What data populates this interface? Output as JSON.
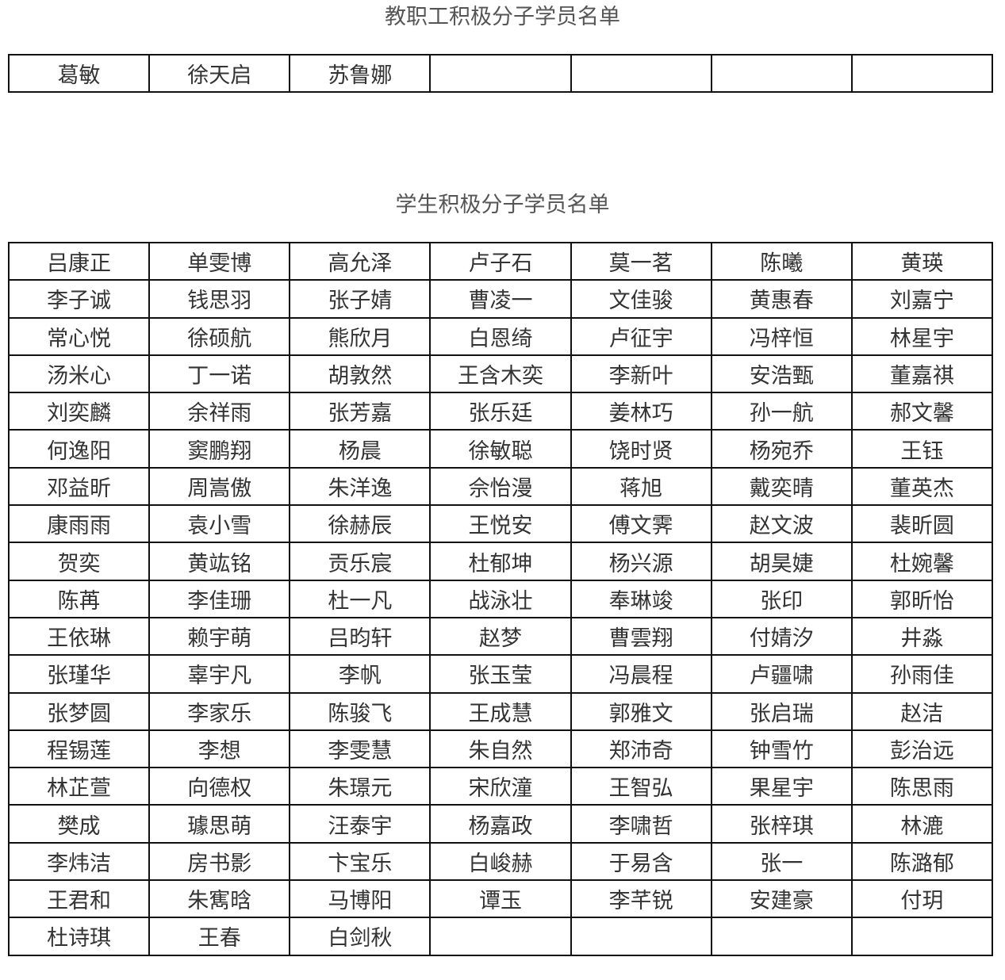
{
  "staff_section": {
    "title": "教职工积极分子学员名单",
    "rows": [
      [
        "葛敏",
        "徐天启",
        "苏鲁娜",
        "",
        "",
        "",
        ""
      ]
    ]
  },
  "student_section": {
    "title": "学生积极分子学员名单",
    "rows": [
      [
        "吕康正",
        "单雯博",
        "高允泽",
        "卢子石",
        "莫一茗",
        "陈曦",
        "黄瑛"
      ],
      [
        "李子诚",
        "钱思羽",
        "张子婧",
        "曹凌一",
        "文佳骏",
        "黄惠春",
        "刘嘉宁"
      ],
      [
        "常心悦",
        "徐硕航",
        "熊欣月",
        "白恩绮",
        "卢征宇",
        "冯梓恒",
        "林星宇"
      ],
      [
        "汤米心",
        "丁一诺",
        "胡敦然",
        "王含木奕",
        "李新叶",
        "安浩甄",
        "董嘉祺"
      ],
      [
        "刘奕麟",
        "余祥雨",
        "张芳嘉",
        "张乐廷",
        "姜林巧",
        "孙一航",
        "郝文馨"
      ],
      [
        "何逸阳",
        "窦鹏翔",
        "杨晨",
        "徐敏聪",
        "饶时贤",
        "杨宛乔",
        "王钰"
      ],
      [
        "邓益昕",
        "周嵩傲",
        "朱洋逸",
        "佘怡漫",
        "蒋旭",
        "戴奕晴",
        "董英杰"
      ],
      [
        "康雨雨",
        "袁小雪",
        "徐赫辰",
        "王悦安",
        "傅文霁",
        "赵文波",
        "裴昕圆"
      ],
      [
        "贺奕",
        "黄竑铭",
        "贡乐宸",
        "杜郁坤",
        "杨兴源",
        "胡昊婕",
        "杜婉馨"
      ],
      [
        "陈苒",
        "李佳珊",
        "杜一凡",
        "战泳壮",
        "奉琳竣",
        "张印",
        "郭昕怡"
      ],
      [
        "王依琳",
        "赖宇萌",
        "吕昀轩",
        "赵梦",
        "曹雲翔",
        "付婧汐",
        "井淼"
      ],
      [
        "张瑾华",
        "辜宇凡",
        "李帆",
        "张玉莹",
        "冯晨程",
        "卢疆啸",
        "孙雨佳"
      ],
      [
        "张梦圆",
        "李家乐",
        "陈骏飞",
        "王成慧",
        "郭雅文",
        "张启瑞",
        "赵洁"
      ],
      [
        "程锡莲",
        "李想",
        "李雯慧",
        "朱自然",
        "郑沛奇",
        "钟雪竹",
        "彭治远"
      ],
      [
        "林芷萱",
        "向德权",
        "朱璟元",
        "宋欣潼",
        "王智弘",
        "果星宇",
        "陈思雨"
      ],
      [
        "樊成",
        "璩思萌",
        "汪泰宇",
        "杨嘉政",
        "李啸哲",
        "张梓琪",
        "林漉"
      ],
      [
        "李炜洁",
        "房书影",
        "卞宝乐",
        "白峻赫",
        "于易含",
        "张一",
        "陈潞郁"
      ],
      [
        "王君和",
        "朱寯晗",
        "马博阳",
        "谭玉",
        "李芊锐",
        "安建豪",
        "付玥"
      ],
      [
        "杜诗琪",
        "王春",
        "白剑秋",
        "",
        "",
        "",
        ""
      ]
    ]
  }
}
